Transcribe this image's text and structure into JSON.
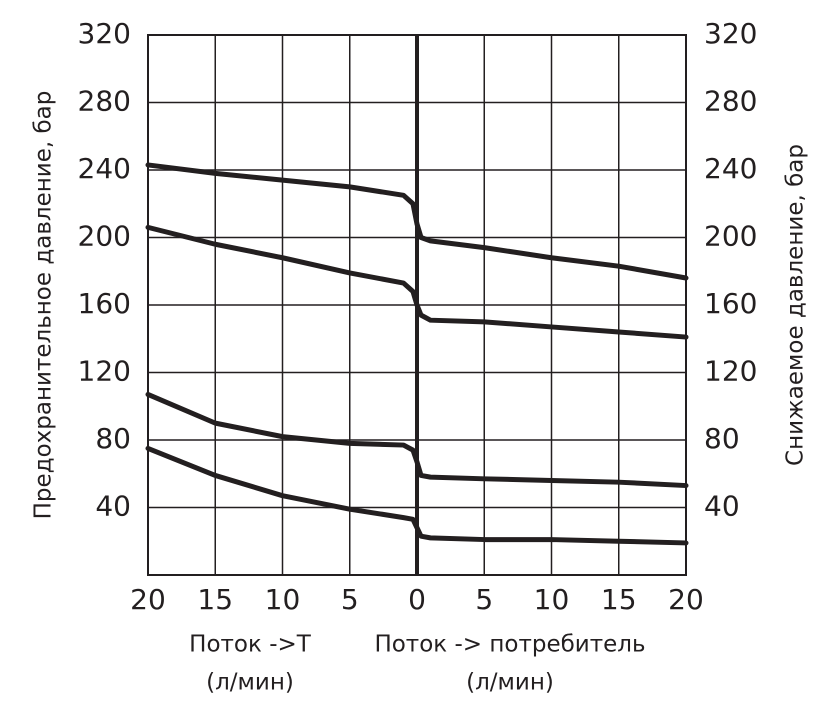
{
  "chart_data": {
    "type": "line",
    "ylabel": "Предохранительное давление, бар",
    "y2label": "Снижаемое давление, бар",
    "xlabel_left": "Поток ->T",
    "xlabel_left_unit": "(л/мин)",
    "xlabel_right": "Поток -> потребитель",
    "xlabel_right_unit": "(л/мин)",
    "x": [
      -20,
      -15,
      -10,
      -5,
      -1,
      -0.3,
      0,
      0.3,
      1,
      5,
      10,
      15,
      20
    ],
    "series": [
      {
        "color": "#231f20",
        "values": [
          243,
          238,
          234,
          230,
          225,
          220,
          208,
          200,
          198,
          194,
          188,
          183,
          176
        ]
      },
      {
        "color": "#231f20",
        "values": [
          206,
          196,
          188,
          179,
          173,
          168,
          160,
          154,
          151,
          150,
          147,
          144,
          141
        ]
      },
      {
        "color": "#231f20",
        "values": [
          107,
          90,
          82,
          78,
          77,
          74,
          67,
          59,
          58,
          57,
          56,
          55,
          53
        ]
      },
      {
        "color": "#231f20",
        "values": [
          75,
          59,
          47,
          39,
          34,
          33,
          28,
          23,
          22,
          21,
          21,
          20,
          19
        ]
      }
    ],
    "xlim": [
      -20,
      20
    ],
    "xticks": [
      {
        "value": -20,
        "label": "20"
      },
      {
        "value": -15,
        "label": "15"
      },
      {
        "value": -10,
        "label": "10"
      },
      {
        "value": -5,
        "label": "5"
      },
      0,
      5,
      10,
      15,
      20
    ],
    "ylim": [
      0,
      320
    ],
    "yticks": [
      40,
      80,
      120,
      160,
      200,
      240,
      280,
      320
    ],
    "y2lim": [
      0,
      320
    ],
    "y2ticks": [
      40,
      80,
      120,
      160,
      200,
      240,
      280,
      320
    ],
    "grid": true
  }
}
